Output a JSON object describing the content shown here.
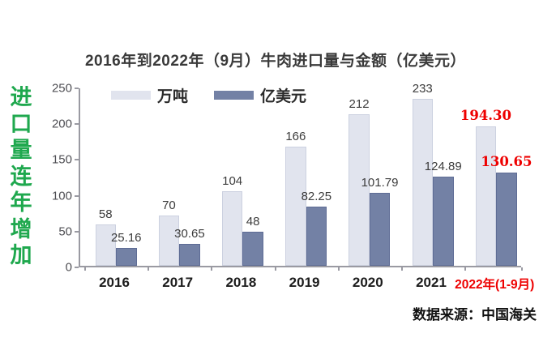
{
  "side_text": "进口量连年增加",
  "title": "2016年到2022年（9月）牛肉进口量与金额（亿美元）",
  "source": "数据来源：中国海关",
  "colors": {
    "green_caption": "#1fa84e",
    "bar_light": "#e1e4ee",
    "bar_dark": "#7381a5",
    "highlight_red": "#ee0000",
    "axis": "#9a9aa2",
    "text": "#3a3a3a"
  },
  "chart_data": {
    "type": "bar",
    "title": "2016年到2022年（9月）牛肉进口量与金额（亿美元）",
    "categories": [
      "2016",
      "2017",
      "2018",
      "2019",
      "2020",
      "2021",
      "2022年(1-9月)"
    ],
    "series": [
      {
        "name": "万吨",
        "color": "#e1e4ee",
        "values": [
          58,
          70,
          104,
          166,
          212,
          233,
          194.3
        ],
        "labels": [
          "58",
          "70",
          "104",
          "166",
          "212",
          "233",
          "194.30"
        ]
      },
      {
        "name": "亿美元",
        "color": "#7381a5",
        "values": [
          25.16,
          30.65,
          48,
          82.25,
          101.79,
          124.89,
          130.65
        ],
        "labels": [
          "25.16",
          "30.65",
          "48",
          "82.25",
          "101.79",
          "124.89",
          "130.65"
        ]
      }
    ],
    "ylim": [
      0,
      250
    ],
    "yticks": [
      0,
      50,
      100,
      150,
      200,
      250
    ],
    "xlabel": "",
    "ylabel": "",
    "grid": false,
    "legend_position": "top-left-inside",
    "highlight_index": 6,
    "highlight_color": "#ee0000",
    "source": "数据来源：中国海关"
  }
}
